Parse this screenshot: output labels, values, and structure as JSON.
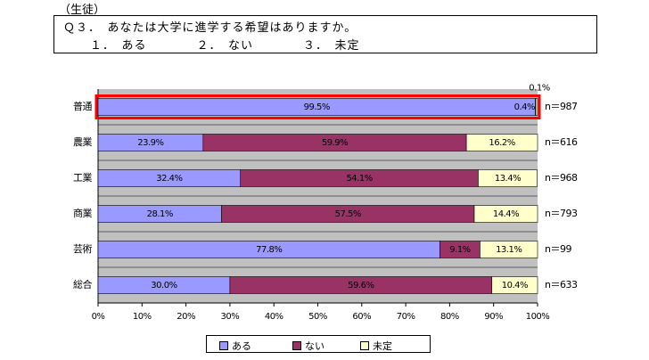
{
  "header": {
    "label": "（生徒）"
  },
  "question": {
    "text": "Ｑ３．　あなたは大学に進学する希望はありますか。",
    "options": "１．　ある　　　　２．　ない　　　　３．　未定"
  },
  "chart_data": {
    "type": "bar",
    "orientation": "horizontal",
    "stacked": true,
    "categories": [
      "普通",
      "農業",
      "工業",
      "商業",
      "芸術",
      "総合"
    ],
    "n_labels": [
      "n＝987",
      "n＝616",
      "n＝968",
      "n＝793",
      "n＝99",
      "n＝633"
    ],
    "series": [
      {
        "name": "ある",
        "values": [
          99.5,
          23.9,
          32.4,
          28.1,
          77.8,
          30.0
        ],
        "labels": [
          "99.5%",
          "23.9%",
          "32.4%",
          "28.1%",
          "77.8%",
          "30.0%"
        ],
        "color": "#9999ff"
      },
      {
        "name": "ない",
        "values": [
          0.1,
          59.9,
          54.1,
          57.5,
          9.1,
          59.6
        ],
        "labels": [
          "0.1%",
          "59.9%",
          "54.1%",
          "57.5%",
          "9.1%",
          "59.6%"
        ],
        "color": "#993366"
      },
      {
        "name": "未定",
        "values": [
          0.4,
          16.2,
          13.4,
          14.4,
          13.1,
          10.4
        ],
        "labels": [
          "0.4%",
          "16.2%",
          "13.4%",
          "14.4%",
          "13.1%",
          "10.4%"
        ],
        "color": "#ffffcc"
      }
    ],
    "x_ticks": [
      "0%",
      "10%",
      "20%",
      "30%",
      "40%",
      "50%",
      "60%",
      "70%",
      "80%",
      "90%",
      "100%"
    ],
    "xlim": [
      0,
      100
    ],
    "highlight_category": "普通",
    "highlight_color": "#ff0000",
    "plot_background": "#c0c0c0",
    "legend_position": "bottom"
  }
}
